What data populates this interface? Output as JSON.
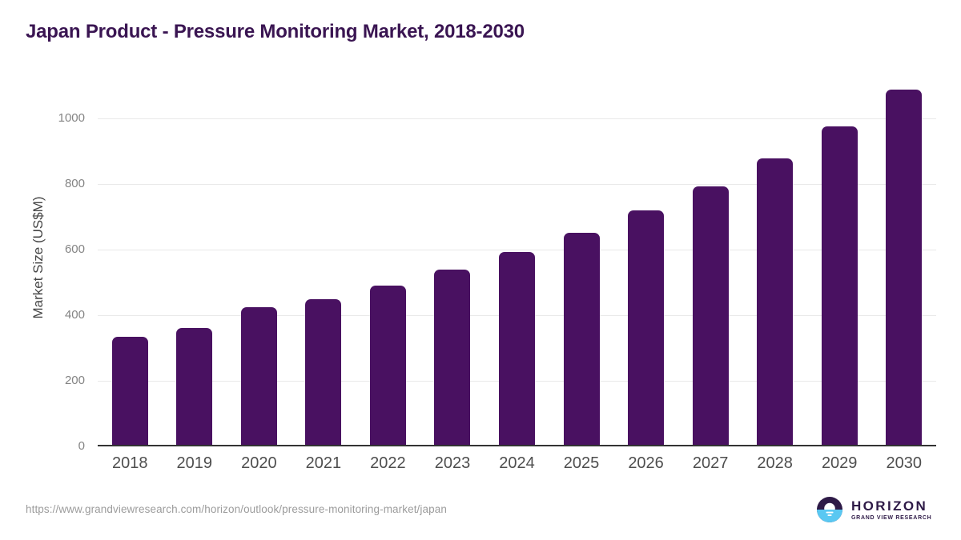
{
  "page": {
    "title": "Japan Product - Pressure Monitoring Market, 2018-2030"
  },
  "chart_data": {
    "type": "bar",
    "title": "Japan Product - Pressure Monitoring Market, 2018-2030",
    "categories": [
      "2018",
      "2019",
      "2020",
      "2021",
      "2022",
      "2023",
      "2024",
      "2025",
      "2026",
      "2027",
      "2028",
      "2029",
      "2030"
    ],
    "values": [
      335,
      360,
      425,
      450,
      491,
      540,
      592,
      651,
      720,
      792,
      878,
      976,
      1088
    ],
    "xlabel": "",
    "ylabel": "Market Size (US$M)",
    "yticks": [
      0,
      200,
      400,
      600,
      800,
      1000
    ],
    "ylim": [
      0,
      1117
    ],
    "grid": "horizontal",
    "legend": "none"
  },
  "footer": {
    "source_url": "https://www.grandviewresearch.com/horizon/outlook/pressure-monitoring-market/japan",
    "logo": {
      "wordmark": "HORIZON",
      "tagline": "GRAND VIEW RESEARCH"
    }
  },
  "colors": {
    "title": "#3a1552",
    "bar": "#491161",
    "grid": "#e9e9e9",
    "axis_line": "#333333",
    "x_tick": "#4e4e4e",
    "y_tick": "#848484",
    "y_axis_title": "#454545",
    "url": "#9c9c9c",
    "logo_purple": "#2e1a47",
    "logo_blue": "#5ac8f2"
  }
}
